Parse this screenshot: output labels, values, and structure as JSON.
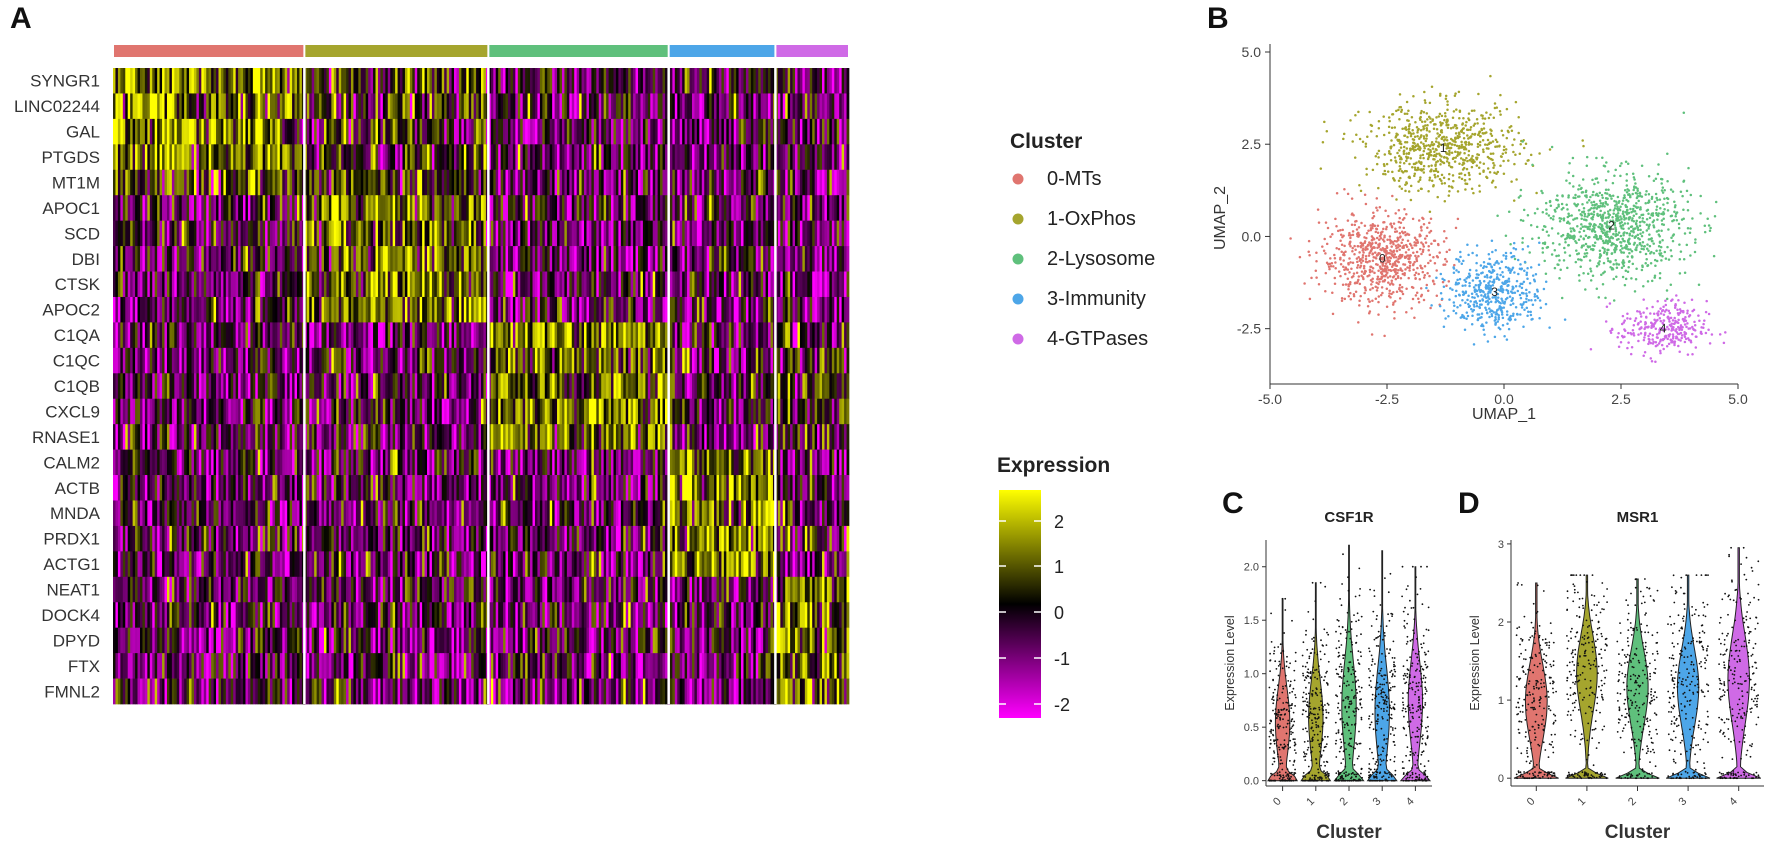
{
  "panels": {
    "a": "A",
    "b": "B",
    "c": "C",
    "d": "D"
  },
  "legend": {
    "title": "Cluster",
    "items": [
      {
        "id": "0",
        "label": "0-MTs",
        "color": "#E0756F"
      },
      {
        "id": "1",
        "label": "1-OxPhos",
        "color": "#A5A52E"
      },
      {
        "id": "2",
        "label": "2-Lysosome",
        "color": "#5FC07C"
      },
      {
        "id": "3",
        "label": "3-Immunity",
        "color": "#4DA6E8"
      },
      {
        "id": "4",
        "label": "4-GTPases",
        "color": "#CF6AE6"
      }
    ]
  },
  "colorbar": {
    "title": "Expression",
    "ticks": [
      "2",
      "1",
      "0",
      "-1",
      "-2"
    ],
    "low_color": "#FF00FF",
    "mid_color": "#000000",
    "high_color": "#FFFF00"
  },
  "chart_data": [
    {
      "type": "heatmap",
      "panel": "A",
      "genes": [
        "SYNGR1",
        "LINC02244",
        "GAL",
        "PTGDS",
        "MT1M",
        "APOC1",
        "SCD",
        "DBI",
        "CTSK",
        "APOC2",
        "C1QA",
        "C1QC",
        "C1QB",
        "CXCL9",
        "RNASE1",
        "CALM2",
        "ACTB",
        "MNDA",
        "PRDX1",
        "ACTG1",
        "NEAT1",
        "DOCK4",
        "DPYD",
        "FTX",
        "FMNL2"
      ],
      "clusters": [
        "0-MTs",
        "1-OxPhos",
        "2-Lysosome",
        "3-Immunity",
        "4-GTPases"
      ],
      "cluster_cell_fraction": [
        0.26,
        0.25,
        0.245,
        0.145,
        0.1
      ],
      "marker_genes": {
        "0-MTs": [
          "SYNGR1",
          "LINC02244",
          "GAL",
          "PTGDS",
          "MT1M"
        ],
        "1-OxPhos": [
          "APOC1",
          "SCD",
          "DBI",
          "CTSK",
          "APOC2"
        ],
        "2-Lysosome": [
          "C1QA",
          "C1QC",
          "C1QB",
          "CXCL9",
          "RNASE1"
        ],
        "3-Immunity": [
          "CALM2",
          "ACTB",
          "MNDA",
          "PRDX1",
          "ACTG1"
        ],
        "4-GTPases": [
          "NEAT1",
          "DOCK4",
          "DPYD",
          "FTX",
          "FMNL2"
        ]
      },
      "color_scale": [
        -2,
        2
      ]
    },
    {
      "type": "scatter",
      "panel": "B",
      "xlabel": "UMAP_1",
      "ylabel": "UMAP_2",
      "xlim": [
        -5.0,
        5.0
      ],
      "ylim": [
        -4.0,
        5.0
      ],
      "xticks": [
        "-5.0",
        "-2.5",
        "0.0",
        "2.5",
        "5.0"
      ],
      "yticks": [
        "5.0",
        "2.5",
        "0.0",
        "-2.5"
      ],
      "xtick_values": [
        -5.0,
        -2.5,
        0.0,
        2.5,
        5.0
      ],
      "ytick_values": [
        5.0,
        2.5,
        0.0,
        -2.5
      ],
      "cluster_centers": [
        {
          "label": "0",
          "x": -2.6,
          "y": -0.6
        },
        {
          "label": "1",
          "x": -1.3,
          "y": 2.4
        },
        {
          "label": "2",
          "x": 2.3,
          "y": 0.3
        },
        {
          "label": "3",
          "x": -0.2,
          "y": -1.5
        },
        {
          "label": "4",
          "x": 3.4,
          "y": -2.5
        }
      ]
    },
    {
      "type": "violin",
      "panel": "C",
      "title": "CSF1R",
      "xlabel": "Cluster",
      "ylabel": "Expression Level",
      "categories": [
        "0",
        "1",
        "2",
        "3",
        "4"
      ],
      "yticks": [
        "0.0",
        "0.5",
        "1.0",
        "1.5",
        "2.0"
      ],
      "ytick_values": [
        0.0,
        0.5,
        1.0,
        1.5,
        2.0
      ],
      "ylim": [
        -0.05,
        2.25
      ],
      "max_values": [
        1.7,
        1.85,
        2.2,
        2.15,
        2.0
      ],
      "medians": [
        0.55,
        0.6,
        0.7,
        0.65,
        0.75
      ]
    },
    {
      "type": "violin",
      "panel": "D",
      "title": "MSR1",
      "xlabel": "Cluster",
      "ylabel": "Expression Level",
      "categories": [
        "0",
        "1",
        "2",
        "3",
        "4"
      ],
      "yticks": [
        "0",
        "1",
        "2",
        "3"
      ],
      "ytick_values": [
        0,
        1,
        2,
        3
      ],
      "ylim": [
        -0.1,
        3.05
      ],
      "max_values": [
        2.5,
        2.6,
        2.55,
        2.6,
        2.95
      ],
      "medians": [
        1.0,
        1.4,
        1.2,
        1.2,
        1.3
      ]
    }
  ]
}
